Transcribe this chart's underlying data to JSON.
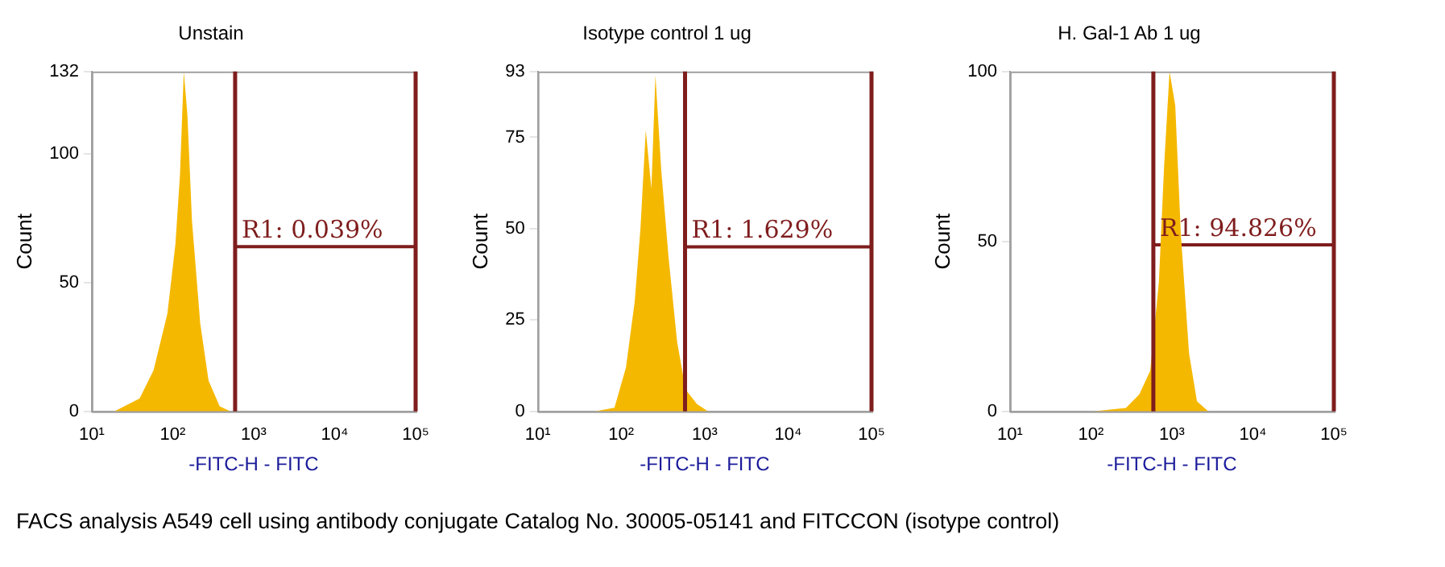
{
  "chart_data": [
    {
      "type": "area",
      "title": "Unstain",
      "xlabel": "-FITC-H - FITC",
      "ylabel": "Count",
      "log": "x",
      "grid": false,
      "legend": false,
      "xlim": [
        10,
        100000
      ],
      "xticks": [
        {
          "value": 10,
          "label": "10¹"
        },
        {
          "value": 100,
          "label": "10²"
        },
        {
          "value": 1000,
          "label": "10³"
        },
        {
          "value": 10000,
          "label": "10⁴"
        },
        {
          "value": 100000,
          "label": "10⁵"
        }
      ],
      "ylim": [
        0,
        132
      ],
      "yticks": [
        0,
        50,
        100,
        132
      ],
      "series": [
        {
          "color": "#f5b800",
          "x": [
            19,
            39,
            58,
            86,
            108,
            123,
            137,
            152,
            173,
            219,
            277,
            380,
            516
          ],
          "values": [
            0,
            5,
            16,
            38,
            65,
            92,
            132,
            115,
            74,
            34,
            12,
            2,
            0
          ]
        },
        {
          "type": "line",
          "name": "R1: 0.039%",
          "color": "#7f1d1d",
          "x": [
            590,
            100000
          ],
          "values": [
            64,
            64
          ]
        }
      ],
      "ref_lines": [
        {
          "axis": "x",
          "value": 590,
          "color": "#7f1d1d"
        },
        {
          "axis": "x",
          "value": 100000,
          "color": "#7f1d1d"
        }
      ],
      "annotations": [
        "FACS analysis A549 cell using antibody conjugate Catalog No. 30005-05141 and FITCCON (isotype control)"
      ]
    },
    {
      "type": "area",
      "title": "Isotype control 1 ug",
      "xlabel": "-FITC-H - FITC",
      "ylabel": "Count",
      "log": "x",
      "grid": false,
      "legend": false,
      "xlim": [
        10,
        100000
      ],
      "xticks": [
        {
          "value": 10,
          "label": "10¹"
        },
        {
          "value": 100,
          "label": "10²"
        },
        {
          "value": 1000,
          "label": "10³"
        },
        {
          "value": 10000,
          "label": "10⁴"
        },
        {
          "value": 100000,
          "label": "10⁵"
        }
      ],
      "ylim": [
        0,
        93
      ],
      "yticks": [
        0,
        25,
        50,
        75,
        93
      ],
      "series": [
        {
          "color": "#f5b800",
          "x": [
            48,
            83,
            114,
            145,
            170,
            197,
            230,
            257,
            302,
            370,
            468,
            590,
            810,
            1100
          ],
          "values": [
            0,
            1,
            12,
            30,
            50,
            77,
            61,
            92,
            66,
            42,
            19,
            6,
            2,
            0
          ]
        },
        {
          "type": "line",
          "name": "R1: 1.629%",
          "color": "#7f1d1d",
          "x": [
            582,
            100000
          ],
          "values": [
            45,
            45
          ]
        }
      ],
      "ref_lines": [
        {
          "axis": "x",
          "value": 582,
          "color": "#7f1d1d"
        },
        {
          "axis": "x",
          "value": 100000,
          "color": "#7f1d1d"
        }
      ]
    },
    {
      "type": "area",
      "title": "H. Gal-1 Ab 1 ug",
      "xlabel": "-FITC-H - FITC",
      "ylabel": "Count",
      "log": "x",
      "grid": false,
      "legend": false,
      "xlim": [
        10,
        100000
      ],
      "xticks": [
        {
          "value": 10,
          "label": "10¹"
        },
        {
          "value": 100,
          "label": "10²"
        },
        {
          "value": 1000,
          "label": "10³"
        },
        {
          "value": 10000,
          "label": "10⁴"
        },
        {
          "value": 100000,
          "label": "10⁵"
        }
      ],
      "ylim": [
        0,
        100
      ],
      "yticks": [
        0,
        50,
        100
      ],
      "series": [
        {
          "color": "#f5b800",
          "x": [
            105,
            270,
            395,
            540,
            690,
            800,
            935,
            1100,
            1290,
            1630,
            2040,
            2820
          ],
          "values": [
            0,
            1,
            5,
            12,
            38,
            72,
            100,
            90,
            52,
            17,
            3,
            0
          ]
        },
        {
          "type": "line",
          "name": "R1: 94.826%",
          "color": "#7f1d1d",
          "x": [
            590,
            100000
          ],
          "values": [
            49,
            49
          ]
        }
      ],
      "ref_lines": [
        {
          "axis": "x",
          "value": 590,
          "color": "#7f1d1d"
        },
        {
          "axis": "x",
          "value": 100000,
          "color": "#7f1d1d"
        }
      ]
    }
  ]
}
